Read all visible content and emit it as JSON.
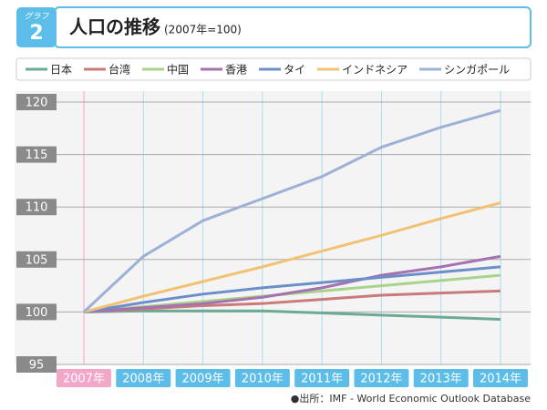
{
  "chart_data": {
    "type": "line",
    "badge_label": "グラフ",
    "badge_number": "2",
    "title": "人口の推移",
    "subtitle": "(2007年=100)",
    "categories": [
      "2007年",
      "2008年",
      "2009年",
      "2010年",
      "2011年",
      "2012年",
      "2013年",
      "2014年"
    ],
    "series": [
      {
        "name": "日本",
        "color": "#6aaa96",
        "values": [
          100,
          100.1,
          100.1,
          100.1,
          99.9,
          99.7,
          99.5,
          99.3
        ]
      },
      {
        "name": "台湾",
        "color": "#c97a7a",
        "values": [
          100,
          100.3,
          100.6,
          100.8,
          101.2,
          101.6,
          101.8,
          102.0
        ]
      },
      {
        "name": "中国",
        "color": "#a8d38a",
        "values": [
          100,
          100.5,
          101.0,
          101.5,
          102.0,
          102.5,
          103.0,
          103.5
        ]
      },
      {
        "name": "香港",
        "color": "#a571b0",
        "values": [
          100,
          100.4,
          100.8,
          101.4,
          102.3,
          103.5,
          104.3,
          105.3
        ]
      },
      {
        "name": "タイ",
        "color": "#6d8fc8",
        "values": [
          100,
          100.9,
          101.7,
          102.3,
          102.8,
          103.3,
          103.8,
          104.3
        ]
      },
      {
        "name": "インドネシア",
        "color": "#f2c274",
        "values": [
          100,
          101.5,
          102.9,
          104.3,
          105.8,
          107.3,
          108.9,
          110.4
        ]
      },
      {
        "name": "シンガポール",
        "color": "#9db0d6",
        "values": [
          100,
          105.3,
          108.7,
          110.8,
          112.9,
          115.7,
          117.6,
          119.2
        ]
      }
    ],
    "ylim": [
      95,
      120
    ],
    "yticks": [
      95,
      100,
      105,
      110,
      115,
      120
    ],
    "grid": true,
    "source": "●出所：IMF - World Economic Outlook Database"
  }
}
